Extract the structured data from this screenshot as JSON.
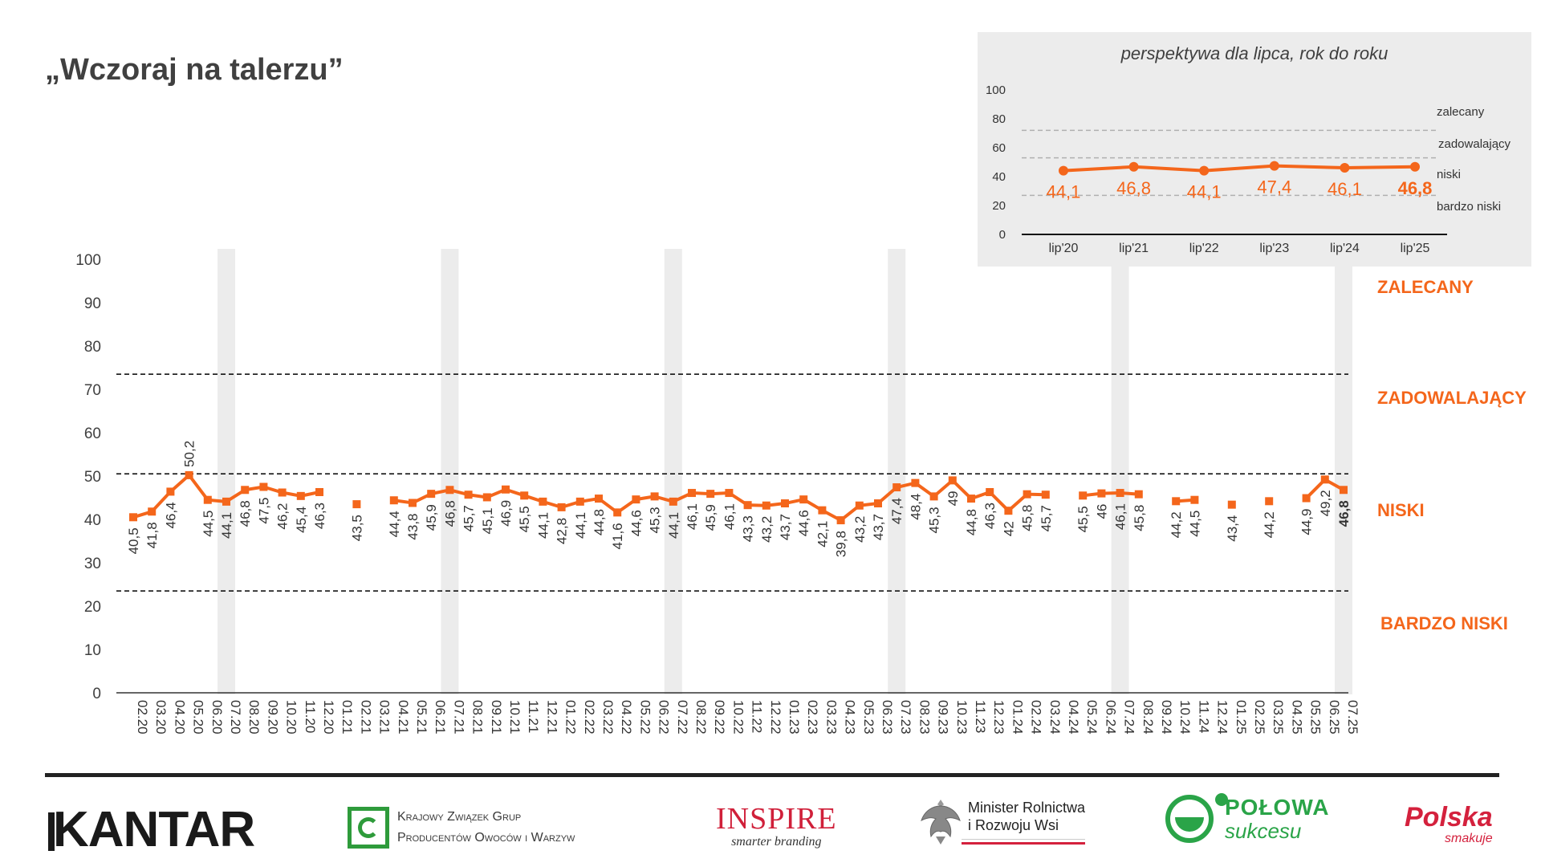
{
  "title": "„Wczoraj na talerzu”",
  "zones": {
    "zalecany": "ZALECANY",
    "zadowalajacy": "ZADOWALAJĄCY",
    "niski": "NISKI",
    "bardzo_niski": "BARDZO NISKI"
  },
  "colors": {
    "accent": "#f4661b",
    "highlight_band": "#ececec",
    "threshold_line": "#000000"
  },
  "chart_data": [
    {
      "type": "line",
      "y_ticks": [
        0,
        10,
        20,
        30,
        40,
        50,
        60,
        70,
        80,
        90,
        100
      ],
      "ylim": [
        0,
        100
      ],
      "thresholds": [
        23.5,
        50.5,
        73.5
      ],
      "highlighted_categories": [
        "07.20",
        "07.21",
        "07.22",
        "07.23",
        "07.24",
        "07.25"
      ],
      "categories": [
        "02.20",
        "03.20",
        "04.20",
        "05.20",
        "06.20",
        "07.20",
        "08.20",
        "09.20",
        "10.20",
        "11.20",
        "12.20",
        "01.21",
        "02.21",
        "03.21",
        "04.21",
        "05.21",
        "06.21",
        "07.21",
        "08.21",
        "09.21",
        "10.21",
        "11.21",
        "12.21",
        "01.22",
        "02.22",
        "03.22",
        "04.22",
        "05.22",
        "06.22",
        "07.22",
        "08.22",
        "09.22",
        "10.22",
        "11.22",
        "12.22",
        "01.23",
        "02.23",
        "03.23",
        "04.23",
        "05.23",
        "06.23",
        "07.23",
        "08.23",
        "09.23",
        "10.23",
        "11.23",
        "12.23",
        "01.24",
        "02.24",
        "03.24",
        "04.24",
        "05.24",
        "06.24",
        "07.24",
        "08.24",
        "09.24",
        "10.24",
        "11.24",
        "12.24",
        "01.25",
        "02.25",
        "03.25",
        "04.25",
        "05.25",
        "06.25",
        "07.25"
      ],
      "values": [
        40.5,
        41.8,
        46.4,
        50.2,
        44.5,
        44.1,
        46.8,
        47.5,
        46.2,
        45.4,
        46.3,
        null,
        43.5,
        null,
        44.4,
        43.8,
        45.9,
        46.8,
        45.7,
        45.1,
        46.9,
        45.5,
        44.1,
        42.8,
        44.1,
        44.8,
        41.6,
        44.6,
        45.3,
        44.1,
        46.1,
        45.9,
        46.1,
        43.3,
        43.2,
        43.7,
        44.6,
        42.1,
        39.8,
        43.2,
        43.7,
        47.4,
        48.4,
        45.3,
        49,
        44.8,
        46.3,
        42,
        45.8,
        45.7,
        null,
        45.5,
        46,
        46.1,
        45.8,
        null,
        44.2,
        44.5,
        null,
        43.4,
        null,
        44.2,
        null,
        44.9,
        49.2,
        46.8
      ],
      "value_labels": [
        "40,5",
        "41,8",
        "46,4",
        "50,2",
        "44,5",
        "44,1",
        "46,8",
        "47,5",
        "46,2",
        "45,4",
        "46,3",
        "",
        "43,5",
        "",
        "44,4",
        "43,8",
        "45,9",
        "46,8",
        "45,7",
        "45,1",
        "46,9",
        "45,5",
        "44,1",
        "42,8",
        "44,1",
        "44,8",
        "41,6",
        "44,6",
        "45,3",
        "44,1",
        "46,1",
        "45,9",
        "46,1",
        "43,3",
        "43,2",
        "43,7",
        "44,6",
        "42,1",
        "39,8",
        "43,2",
        "43,7",
        "47,4",
        "48,4",
        "45,3",
        "49",
        "44,8",
        "46,3",
        "42",
        "45,8",
        "45,7",
        "",
        "45,5",
        "46",
        "46,1",
        "45,8",
        "",
        "44,2",
        "44,5",
        "",
        "43,4",
        "",
        "44,2",
        "",
        "44,9",
        "49,2",
        "46,8"
      ]
    },
    {
      "type": "line",
      "title": "perspektywa dla lipca, rok do roku",
      "y_ticks": [
        0,
        20,
        40,
        60,
        80,
        100
      ],
      "ylim": [
        0,
        100
      ],
      "thresholds": [
        27,
        53,
        72
      ],
      "categories": [
        "lip'20",
        "lip'21",
        "lip'22",
        "lip'23",
        "lip'24",
        "lip'25"
      ],
      "values": [
        44.1,
        46.8,
        44.1,
        47.4,
        46.1,
        46.8
      ],
      "value_labels": [
        "44,1",
        "46,8",
        "44,1",
        "47,4",
        "46,1",
        "46,8"
      ],
      "zone_labels": [
        "zalecany",
        "zadowalający",
        "niski",
        "bardzo niski"
      ]
    }
  ],
  "footer": {
    "kantar": "KANTAR",
    "kzgp_line1": "Krajowy Związek Grup",
    "kzgp_line2": "Producentów Owoców i Warzyw",
    "inspire_big": "INSPIRE",
    "inspire_small": "smarter branding",
    "minister_line1": "Minister Rolnictwa",
    "minister_line2": "i Rozwoju Wsi",
    "polowa_line1": "POŁOWA",
    "polowa_line2": "sukcesu",
    "polska_line1": "Polska",
    "polska_line2": "smakuje"
  }
}
